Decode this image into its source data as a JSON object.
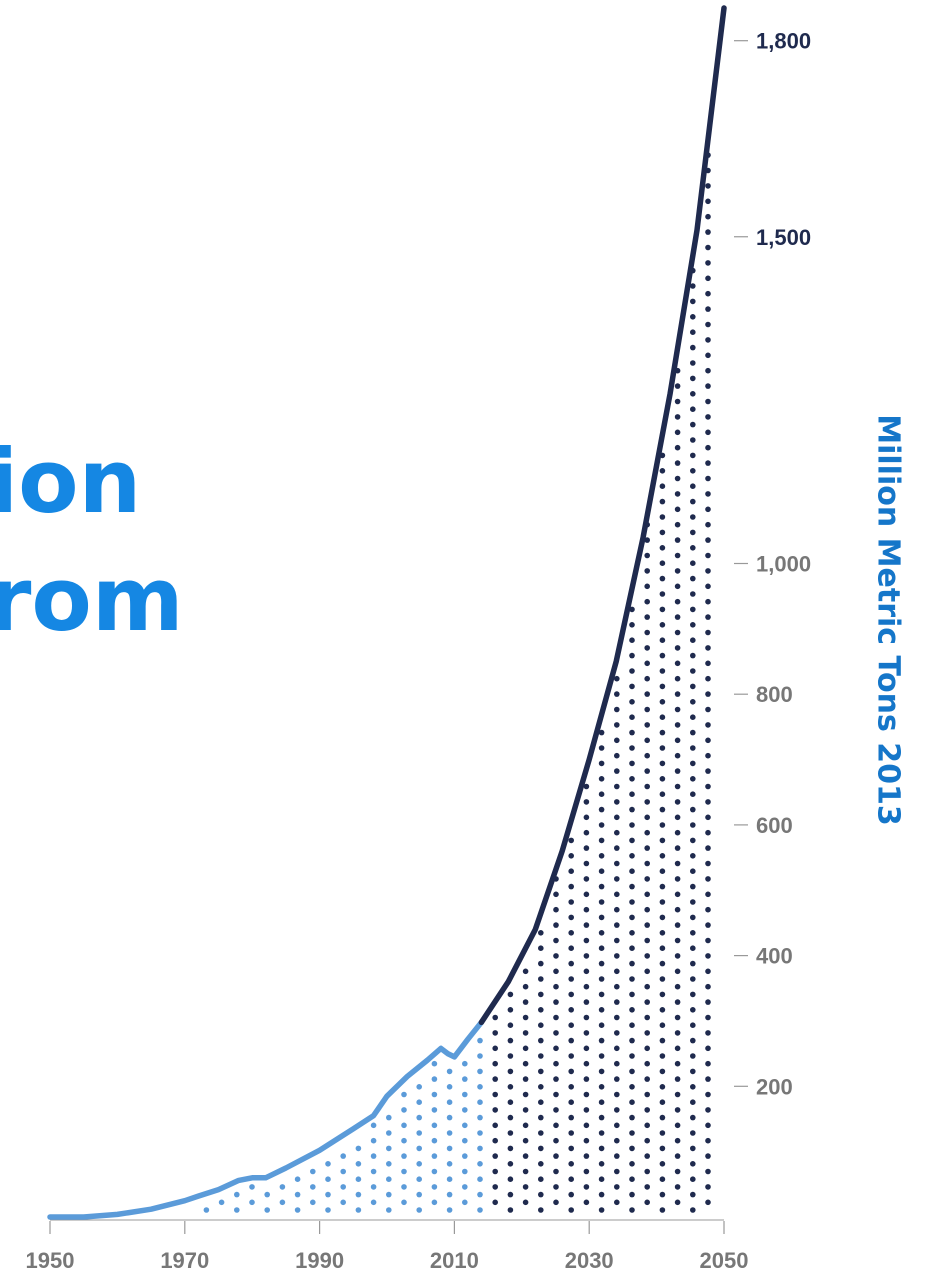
{
  "title": {
    "line1": "ion",
    "line2": "rom"
  },
  "colors": {
    "projected": "#1f2a4e",
    "historical": "#5b9bd9",
    "accent": "#1587e3",
    "axis_title": "#1576c9",
    "tick_gray": "#777777"
  },
  "chart_data": {
    "type": "area",
    "ylabel": "Million Metric Tons 2013",
    "x_ticks": [
      1950,
      1970,
      1990,
      2010,
      2030,
      2050
    ],
    "y_ticks": [
      {
        "value": 200,
        "label": "200",
        "style": "gray"
      },
      {
        "value": 400,
        "label": "400",
        "style": "gray"
      },
      {
        "value": 600,
        "label": "600",
        "style": "gray"
      },
      {
        "value": 800,
        "label": "800",
        "style": "gray"
      },
      {
        "value": 1000,
        "label": "1,000",
        "style": "gray"
      },
      {
        "value": 1500,
        "label": "1,500",
        "style": "dark"
      },
      {
        "value": 1800,
        "label": "1,800",
        "style": "dark"
      }
    ],
    "xlim": [
      1950,
      2050
    ],
    "ylim": [
      0,
      1850
    ],
    "grid": false,
    "series": [
      {
        "fill": "dotted",
        "x": [
          1950,
          1955,
          1960,
          1965,
          1970,
          1972,
          1975,
          1978,
          1980,
          1982,
          1985,
          1990,
          1995,
          1998,
          2000,
          2003,
          2006,
          2008,
          2009,
          2010,
          2012,
          2014
        ],
        "y": [
          0,
          0,
          4,
          12,
          25,
          32,
          42,
          56,
          60,
          60,
          75,
          102,
          135,
          155,
          185,
          215,
          240,
          258,
          250,
          245,
          272,
          298
        ]
      },
      {
        "fill": "dotted",
        "x": [
          2014,
          2018,
          2022,
          2026,
          2030,
          2034,
          2038,
          2042,
          2046,
          2050
        ],
        "y": [
          298,
          360,
          440,
          560,
          700,
          850,
          1040,
          1260,
          1510,
          1850
        ]
      }
    ]
  }
}
